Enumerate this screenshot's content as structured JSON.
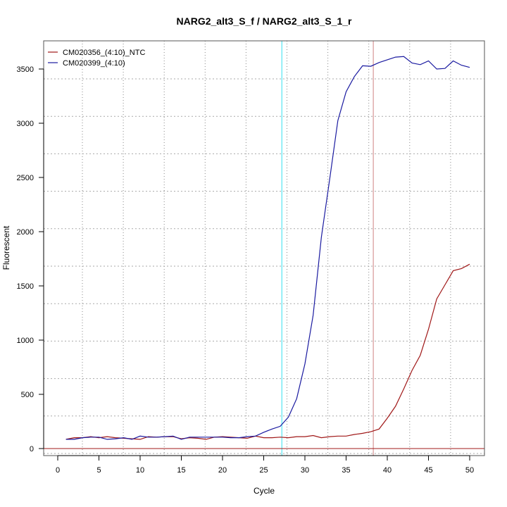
{
  "chart_data": {
    "type": "line",
    "title": "NARG2_alt3_S_f / NARG2_alt3_S_1_r",
    "xlabel": "Cycle",
    "ylabel": "Fluorescent",
    "xlim": [
      -2,
      52
    ],
    "ylim": [
      -60,
      3720
    ],
    "xticks": [
      0,
      5,
      10,
      15,
      20,
      25,
      30,
      35,
      40,
      45,
      50
    ],
    "yticks": [
      0,
      500,
      1000,
      1500,
      2000,
      2500,
      3000,
      3500
    ],
    "grid": true,
    "legend": "top-left",
    "x": [
      1,
      2,
      3,
      4,
      5,
      6,
      7,
      8,
      9,
      10,
      11,
      12,
      13,
      14,
      15,
      16,
      17,
      18,
      19,
      20,
      21,
      22,
      23,
      24,
      25,
      26,
      27,
      28,
      29,
      30,
      31,
      32,
      33,
      34,
      35,
      36,
      37,
      38,
      39,
      40,
      41,
      42,
      43,
      44,
      45,
      46,
      47,
      48,
      49,
      50
    ],
    "series": [
      {
        "name": "CM020356_(4:10)_NTC",
        "color": "#a01818",
        "values": [
          85,
          100,
          100,
          110,
          100,
          110,
          100,
          95,
          90,
          85,
          110,
          105,
          110,
          110,
          90,
          100,
          95,
          85,
          105,
          110,
          105,
          100,
          95,
          115,
          100,
          100,
          105,
          100,
          110,
          110,
          120,
          100,
          110,
          115,
          115,
          130,
          140,
          155,
          180,
          280,
          390,
          550,
          720,
          860,
          1100,
          1380,
          1510,
          1640,
          1660,
          1700
        ]
      },
      {
        "name": "CM020399_(4:10)",
        "color": "#1a1aa0",
        "values": [
          85,
          85,
          100,
          105,
          105,
          85,
          90,
          100,
          85,
          115,
          105,
          105,
          110,
          115,
          85,
          105,
          105,
          105,
          105,
          105,
          100,
          100,
          110,
          115,
          150,
          180,
          205,
          290,
          460,
          780,
          1230,
          1950,
          2480,
          3025,
          3290,
          3430,
          3530,
          3525,
          3560,
          3585,
          3610,
          3615,
          3555,
          3540,
          3575,
          3500,
          3505,
          3575,
          3535,
          3515
        ]
      }
    ],
    "threshold_lines": [
      {
        "cycle": 27.2,
        "color": "#33e0f0"
      },
      {
        "cycle": 38.3,
        "color": "#d08080"
      }
    ],
    "baseline": {
      "value": 0,
      "color": "#a01818"
    }
  }
}
